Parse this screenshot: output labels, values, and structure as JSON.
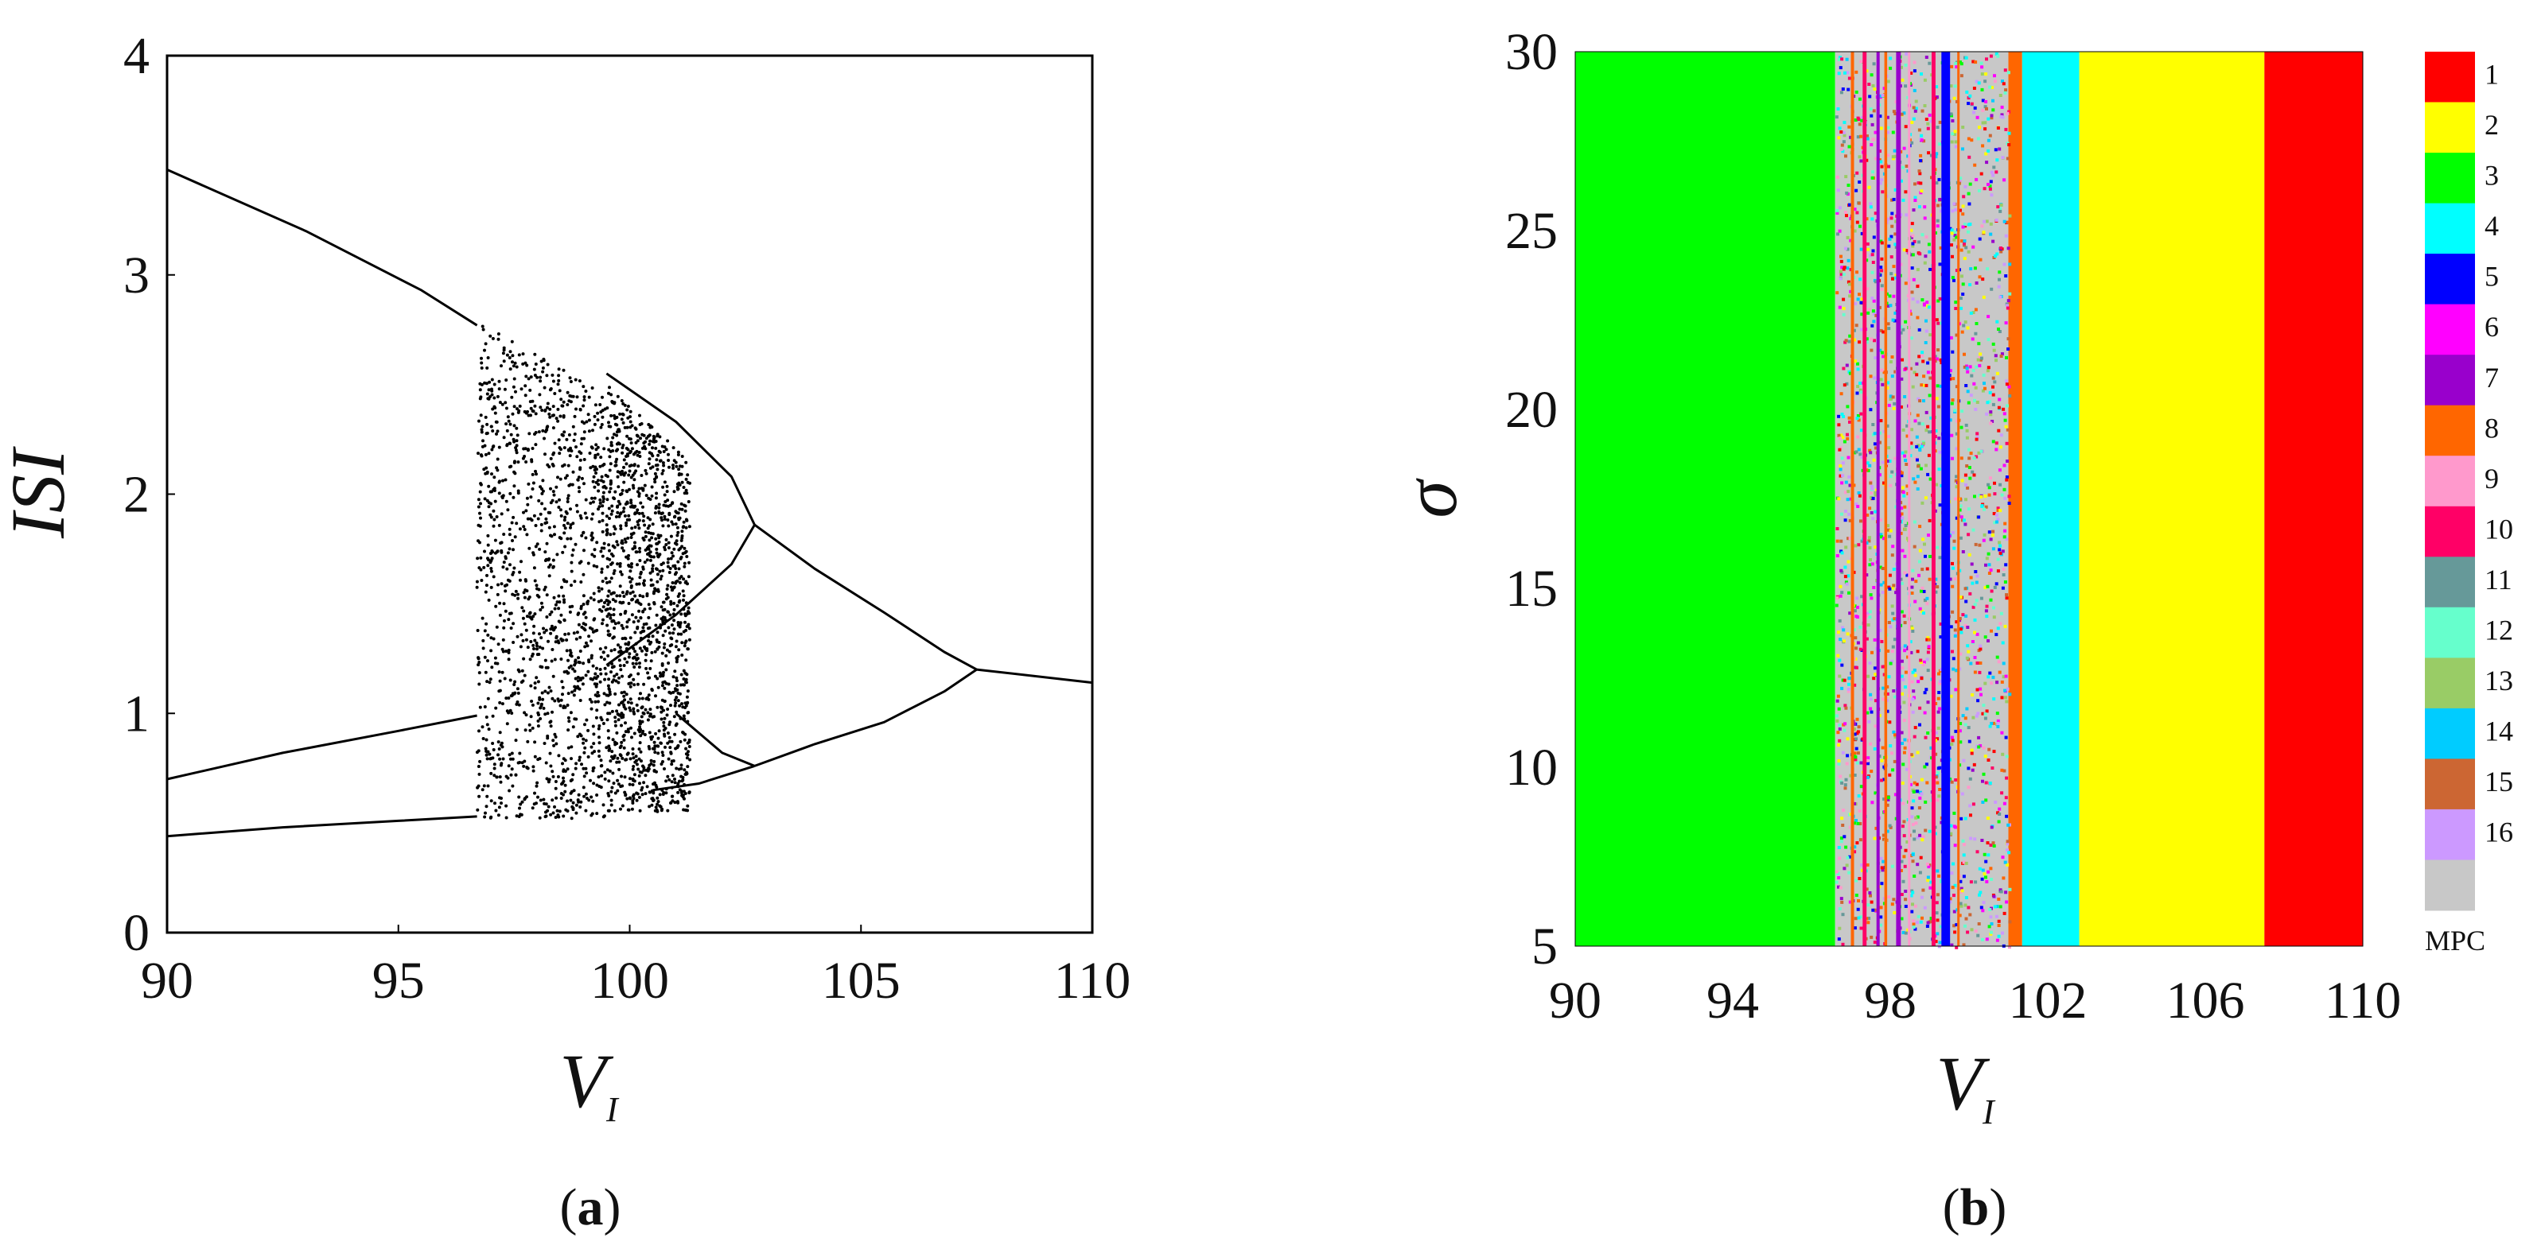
{
  "chart_data": [
    {
      "panel": "a",
      "type": "scatter",
      "title": "",
      "xlabel": "V",
      "xlabel_subscript": "I",
      "ylabel": "ISI",
      "xlim": [
        90,
        110
      ],
      "ylim": [
        0,
        4
      ],
      "x_ticks": [
        "90",
        "95",
        "100",
        "105",
        "110"
      ],
      "y_ticks": [
        "0",
        "1",
        "2",
        "3",
        "4"
      ],
      "grid": false,
      "caption_prefix": "(",
      "caption_letter": "a",
      "caption_suffix": ")",
      "branches": {
        "upper_period1": [
          [
            90,
            3.48
          ],
          [
            93,
            3.2
          ],
          [
            95.5,
            2.93
          ],
          [
            96.7,
            2.77
          ]
        ],
        "lower_period1": [
          [
            90,
            0.44
          ],
          [
            92.5,
            0.48
          ],
          [
            95,
            0.51
          ],
          [
            96.7,
            0.53
          ]
        ],
        "middle_period1": [
          [
            90,
            0.7
          ],
          [
            92.5,
            0.82
          ],
          [
            95,
            0.92
          ],
          [
            96.7,
            0.99
          ]
        ],
        "period2_upper": [
          [
            99.5,
            2.55
          ],
          [
            101,
            2.33
          ],
          [
            102.2,
            2.08
          ],
          [
            102.7,
            1.86
          ]
        ],
        "period2_lower": [
          [
            99.5,
            1.22
          ],
          [
            101,
            1.45
          ],
          [
            102.2,
            1.68
          ],
          [
            102.7,
            1.86
          ]
        ],
        "period4_a": [
          [
            101,
            1.0
          ],
          [
            102,
            0.82
          ],
          [
            102.7,
            0.76
          ]
        ],
        "period4_b": [
          [
            100.5,
            0.65
          ],
          [
            101.5,
            0.68
          ],
          [
            102.7,
            0.76
          ]
        ],
        "right_upper": [
          [
            102.7,
            1.86
          ],
          [
            104,
            1.66
          ],
          [
            105.5,
            1.46
          ],
          [
            106.8,
            1.28
          ],
          [
            107.5,
            1.2
          ]
        ],
        "right_lower": [
          [
            102.7,
            0.76
          ],
          [
            104,
            0.86
          ],
          [
            105.5,
            0.96
          ],
          [
            106.8,
            1.1
          ],
          [
            107.5,
            1.2
          ]
        ],
        "period1_tail": [
          [
            107.5,
            1.2
          ],
          [
            110,
            1.14
          ]
        ]
      },
      "chaotic_regions": [
        {
          "x": [
            96.7,
            99.5
          ],
          "y": [
            0.52,
            2.8
          ]
        },
        {
          "x": [
            99.5,
            101.3
          ],
          "y": [
            0.55,
            2.5
          ]
        }
      ]
    },
    {
      "panel": "b",
      "type": "heatmap",
      "title": "",
      "xlabel": "V",
      "xlabel_subscript": "I",
      "ylabel": "σ",
      "xlim": [
        90,
        110
      ],
      "ylim": [
        5,
        30
      ],
      "x_ticks": [
        "90",
        "94",
        "98",
        "102",
        "106",
        "110"
      ],
      "y_ticks": [
        "5",
        "10",
        "15",
        "20",
        "25",
        "30"
      ],
      "grid": false,
      "caption_prefix": "(",
      "caption_letter": "b",
      "caption_suffix": ")",
      "legend": [
        {
          "label": "1",
          "color": "#ff0000"
        },
        {
          "label": "2",
          "color": "#ffff00"
        },
        {
          "label": "3",
          "color": "#00ff00"
        },
        {
          "label": "4",
          "color": "#00ffff"
        },
        {
          "label": "5",
          "color": "#0000ff"
        },
        {
          "label": "6",
          "color": "#ff00ff"
        },
        {
          "label": "7",
          "color": "#9900cc"
        },
        {
          "label": "8",
          "color": "#ff6600"
        },
        {
          "label": "9",
          "color": "#ff99cc"
        },
        {
          "label": "10",
          "color": "#ff0066"
        },
        {
          "label": "11",
          "color": "#669999"
        },
        {
          "label": "12",
          "color": "#66ffcc"
        },
        {
          "label": "13",
          "color": "#99cc66"
        },
        {
          "label": "14",
          "color": "#00ccff"
        },
        {
          "label": "15",
          "color": "#cc6633"
        },
        {
          "label": "16",
          "color": "#cc99ff"
        },
        {
          "label": "MPC",
          "color": "#c8c8c8"
        }
      ],
      "bands": [
        {
          "x0": 90,
          "x1": 96.6,
          "color": "#00ff00"
        },
        {
          "x0": 96.6,
          "x1": 101.0,
          "color": "#c8c8c8"
        },
        {
          "x0": 101.0,
          "x1": 101.35,
          "color": "#ff6600"
        },
        {
          "x0": 101.35,
          "x1": 102.8,
          "color": "#00ffff"
        },
        {
          "x0": 102.8,
          "x1": 107.5,
          "color": "#ffff00"
        },
        {
          "x0": 107.5,
          "x1": 110,
          "color": "#ff0000"
        }
      ],
      "stripes": [
        {
          "x": 97.0,
          "w": 0.08,
          "color": "#ff6600"
        },
        {
          "x": 97.3,
          "w": 0.1,
          "color": "#ff0066"
        },
        {
          "x": 97.65,
          "w": 0.08,
          "color": "#9900cc"
        },
        {
          "x": 97.85,
          "w": 0.07,
          "color": "#ff6600"
        },
        {
          "x": 98.15,
          "w": 0.12,
          "color": "#9900cc"
        },
        {
          "x": 98.45,
          "w": 0.06,
          "color": "#ff99cc"
        },
        {
          "x": 99.05,
          "w": 0.1,
          "color": "#ff0066"
        },
        {
          "x": 99.3,
          "w": 0.22,
          "color": "#0000ff"
        },
        {
          "x": 99.7,
          "w": 0.05,
          "color": "#ff6600"
        }
      ]
    }
  ]
}
